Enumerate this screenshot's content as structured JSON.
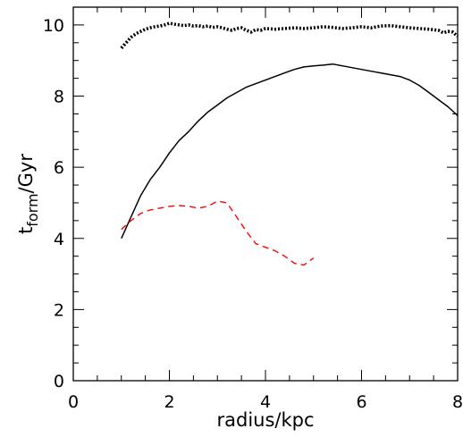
{
  "chart_data": {
    "type": "line",
    "title": "",
    "xlabel": "radius/kpc",
    "ylabel": {
      "base": "t",
      "subscript": "form",
      "suffix": "/Gyr"
    },
    "xlim": [
      0,
      8
    ],
    "ylim": [
      0,
      10.5
    ],
    "x_ticks": [
      "0",
      "2",
      "4",
      "6",
      "8"
    ],
    "y_ticks": [
      "0",
      "2",
      "4",
      "6",
      "8",
      "10"
    ],
    "grid": false,
    "legend": "none",
    "series": [
      {
        "style": "dotted",
        "color": "#000000",
        "x": [
          1.0,
          1.1,
          1.2,
          1.3,
          1.4,
          1.5,
          1.6,
          1.7,
          1.8,
          1.9,
          2.0,
          2.1,
          2.2,
          2.3,
          2.4,
          2.5,
          2.6,
          2.7,
          2.8,
          2.9,
          3.0,
          3.1,
          3.2,
          3.3,
          3.4,
          3.5,
          3.6,
          3.7,
          3.8,
          3.9,
          4.0,
          4.2,
          4.4,
          4.6,
          4.8,
          5.0,
          5.2,
          5.4,
          5.6,
          5.8,
          6.0,
          6.2,
          6.4,
          6.6,
          6.8,
          7.0,
          7.2,
          7.4,
          7.6,
          7.7,
          7.8,
          7.9,
          8.0
        ],
        "y": [
          9.35,
          9.5,
          9.65,
          9.75,
          9.82,
          9.88,
          9.92,
          9.95,
          9.97,
          10.0,
          10.05,
          10.02,
          10.0,
          9.98,
          10.0,
          9.97,
          9.98,
          9.95,
          9.97,
          9.93,
          9.95,
          9.92,
          9.88,
          9.85,
          9.9,
          9.92,
          9.85,
          9.8,
          9.87,
          9.85,
          9.9,
          9.88,
          9.9,
          9.92,
          9.9,
          9.92,
          9.95,
          9.93,
          9.9,
          9.92,
          9.95,
          9.92,
          9.97,
          9.98,
          9.95,
          9.92,
          9.9,
          9.88,
          9.85,
          9.78,
          9.82,
          9.8,
          9.68
        ]
      },
      {
        "style": "solid",
        "color": "#000000",
        "x": [
          1.0,
          1.2,
          1.4,
          1.6,
          1.8,
          2.0,
          2.2,
          2.4,
          2.6,
          2.8,
          3.0,
          3.2,
          3.4,
          3.6,
          3.8,
          4.0,
          4.2,
          4.4,
          4.6,
          4.8,
          5.0,
          5.2,
          5.4,
          5.6,
          5.8,
          6.0,
          6.2,
          6.4,
          6.6,
          6.8,
          7.0,
          7.2,
          7.4,
          7.6,
          7.8,
          8.0
        ],
        "y": [
          4.0,
          4.6,
          5.2,
          5.65,
          6.0,
          6.4,
          6.75,
          7.0,
          7.3,
          7.55,
          7.75,
          7.95,
          8.1,
          8.25,
          8.35,
          8.45,
          8.55,
          8.65,
          8.75,
          8.82,
          8.85,
          8.87,
          8.9,
          8.85,
          8.8,
          8.75,
          8.7,
          8.65,
          8.6,
          8.55,
          8.45,
          8.3,
          8.1,
          7.9,
          7.7,
          7.45
        ]
      },
      {
        "style": "dashed",
        "color": "#ff0000",
        "x": [
          1.0,
          1.2,
          1.4,
          1.6,
          1.8,
          2.0,
          2.2,
          2.4,
          2.6,
          2.8,
          3.0,
          3.2,
          3.4,
          3.6,
          3.8,
          4.0,
          4.2,
          4.4,
          4.6,
          4.8,
          5.0
        ],
        "y": [
          4.25,
          4.5,
          4.7,
          4.8,
          4.85,
          4.9,
          4.92,
          4.9,
          4.85,
          4.9,
          5.05,
          5.0,
          4.6,
          4.2,
          3.85,
          3.75,
          3.65,
          3.5,
          3.3,
          3.25,
          3.45
        ]
      }
    ]
  }
}
